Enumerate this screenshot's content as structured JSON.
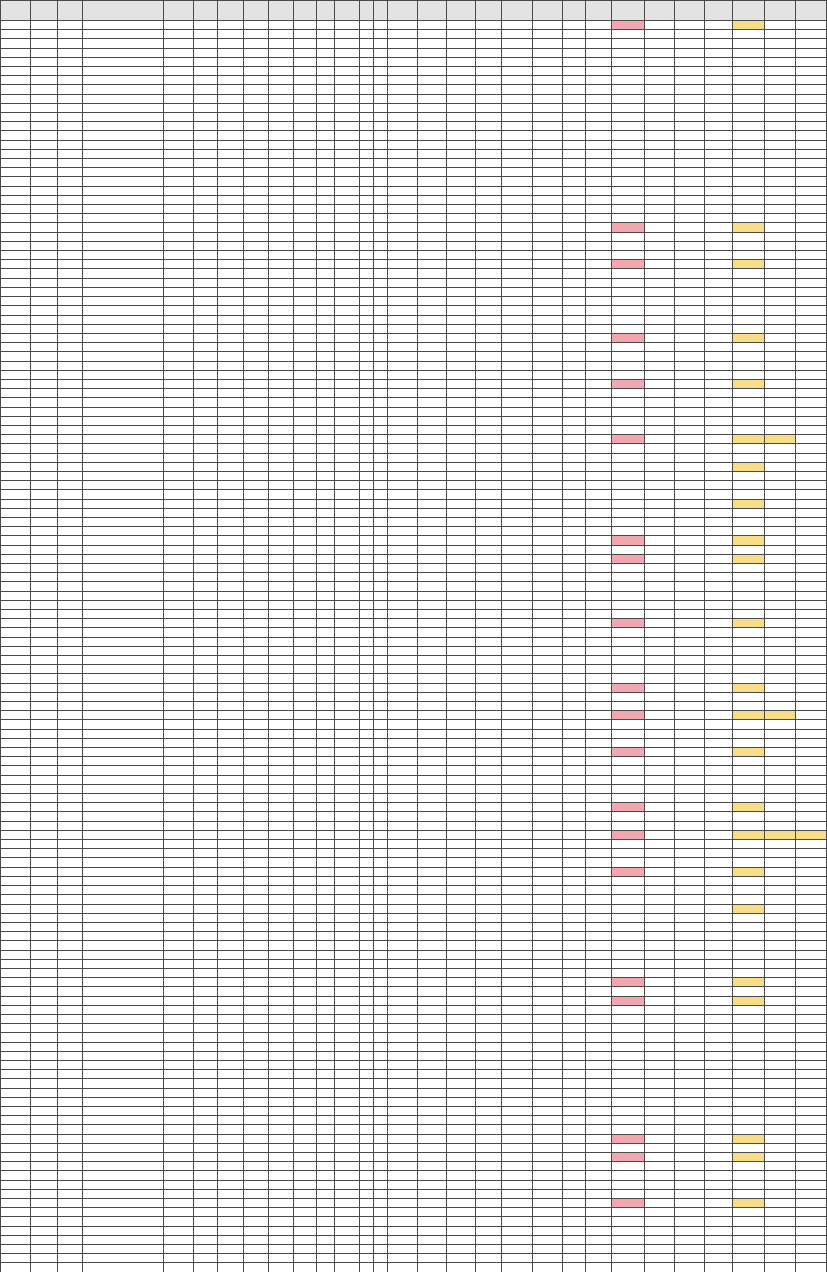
{
  "sheet": {
    "name": "spreadsheet-page",
    "row_count": 136,
    "header_height": 20,
    "rows_top": 20
  },
  "columns": [
    {
      "label": "",
      "w": 29
    },
    {
      "label": "",
      "w": 25
    },
    {
      "label": "",
      "w": 24
    },
    {
      "label": "",
      "w": 78
    },
    {
      "label": "",
      "w": 28
    },
    {
      "label": "",
      "w": 23
    },
    {
      "label": "",
      "w": 25
    },
    {
      "label": "",
      "w": 24
    },
    {
      "label": "",
      "w": 24
    },
    {
      "label": "",
      "w": 22
    },
    {
      "label": "",
      "w": 17
    },
    {
      "label": "",
      "w": 24
    },
    {
      "label": "",
      "w": 13
    },
    {
      "label": "",
      "w": 14
    },
    {
      "label": "",
      "w": 28
    },
    {
      "label": "",
      "w": 28
    },
    {
      "label": "",
      "w": 28
    },
    {
      "label": "",
      "w": 25
    },
    {
      "label": "",
      "w": 29
    },
    {
      "label": "",
      "w": 29
    },
    {
      "label": "",
      "w": 22
    },
    {
      "label": "",
      "w": 25
    },
    {
      "label": "",
      "w": 31
    },
    {
      "label": "",
      "w": 29
    },
    {
      "label": "",
      "w": 28
    },
    {
      "label": "",
      "w": 27
    },
    {
      "label": "",
      "w": 31
    },
    {
      "label": "",
      "w": 29
    },
    {
      "label": "",
      "w": 30
    }
  ],
  "row_highlights": [
    [],
    [],
    [],
    [],
    [],
    [],
    [],
    [],
    [],
    [],
    [],
    [],
    [],
    [],
    [],
    [],
    [],
    [],
    [],
    [],
    [],
    [],
    [],
    [],
    [],
    [],
    [
      22
    ],
    [],
    [],
    [],
    [],
    [],
    [],
    [],
    [],
    [],
    [],
    [],
    [],
    [],
    [],
    [],
    [],
    [],
    [],
    [],
    [],
    [],
    [],
    [],
    [],
    [],
    [],
    [],
    [],
    [],
    [],
    [],
    [],
    []
  ],
  "highlight_colors": {
    "red": "#f2a6ae",
    "yellow": "#f8dc86",
    "grid": "#4a4a4a",
    "header_bg": "#e3e3e3"
  }
}
